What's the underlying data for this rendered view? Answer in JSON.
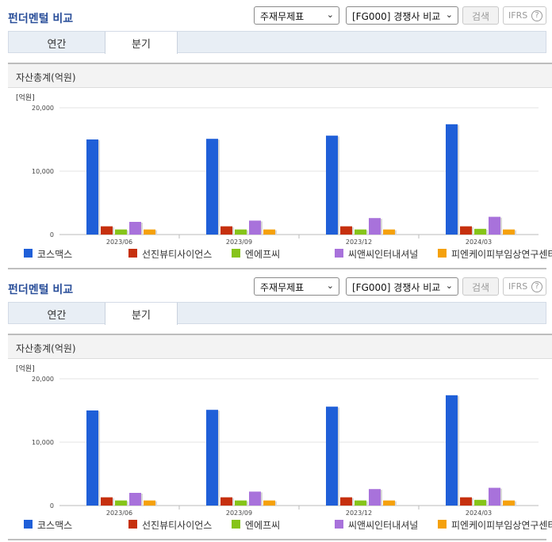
{
  "panels": [
    {
      "title": "펀더멘털 비교",
      "select_statement": "주재무제표",
      "select_compare": "[FG000] 경쟁사 비교",
      "search_label": "검색",
      "ifrs_label": "IFRS",
      "help_glyph": "?",
      "tabs": [
        "연간",
        "분기"
      ],
      "section_title": "자산총계(억원)"
    },
    {
      "title": "펀더멘털 비교",
      "select_statement": "주재무제표",
      "select_compare": "[FG000] 경쟁사 비교",
      "search_label": "검색",
      "ifrs_label": "IFRS",
      "help_glyph": "?",
      "tabs": [
        "연간",
        "분기"
      ],
      "section_title": "자산총계(억원)"
    }
  ],
  "chart_data": [
    {
      "type": "bar",
      "title": "",
      "ylabel": "[억원]",
      "ylim": [
        0,
        20000
      ],
      "yticks": [
        0,
        10000,
        20000
      ],
      "ytick_labels": [
        "0",
        "10,000",
        "20,000"
      ],
      "categories": [
        "2023/06",
        "2023/09",
        "2023/12",
        "2024/03"
      ],
      "series": [
        {
          "name": "코스맥스",
          "color": "#1f5fd8",
          "values": [
            15000,
            15100,
            15600,
            17400
          ]
        },
        {
          "name": "선진뷰티사이언스",
          "color": "#c6300e",
          "values": [
            1300,
            1300,
            1300,
            1300
          ]
        },
        {
          "name": "엔에프씨",
          "color": "#86c41a",
          "values": [
            800,
            800,
            800,
            900
          ]
        },
        {
          "name": "씨앤씨인터내셔널",
          "color": "#a872db",
          "values": [
            2000,
            2200,
            2600,
            2800
          ]
        },
        {
          "name": "피엔케이피부임상연구센타",
          "color": "#f5a10c",
          "values": [
            800,
            800,
            800,
            800
          ]
        }
      ],
      "legend": "bottom"
    },
    {
      "type": "bar",
      "title": "",
      "ylabel": "[억원]",
      "ylim": [
        0,
        20000
      ],
      "yticks": [
        0,
        10000,
        20000
      ],
      "ytick_labels": [
        "0",
        "10,000",
        "20,000"
      ],
      "categories": [
        "2023/06",
        "2023/09",
        "2023/12",
        "2024/03"
      ],
      "series": [
        {
          "name": "코스맥스",
          "color": "#1f5fd8",
          "values": [
            15000,
            15100,
            15600,
            17400
          ]
        },
        {
          "name": "선진뷰티사이언스",
          "color": "#c6300e",
          "values": [
            1300,
            1300,
            1300,
            1300
          ]
        },
        {
          "name": "엔에프씨",
          "color": "#86c41a",
          "values": [
            800,
            800,
            800,
            900
          ]
        },
        {
          "name": "씨앤씨인터내셔널",
          "color": "#a872db",
          "values": [
            2000,
            2200,
            2600,
            2800
          ]
        },
        {
          "name": "피엔케이피부임상연구센타",
          "color": "#f5a10c",
          "values": [
            800,
            800,
            800,
            800
          ]
        }
      ],
      "legend": "bottom"
    }
  ]
}
